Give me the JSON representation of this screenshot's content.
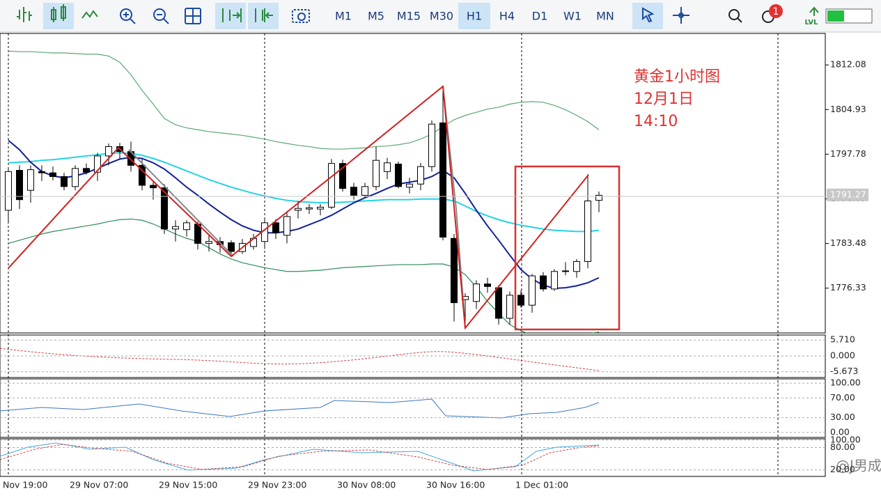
{
  "toolbar": {
    "timeframes": [
      "M1",
      "M5",
      "M15",
      "M30",
      "H1",
      "H4",
      "D1",
      "W1",
      "MN"
    ],
    "badge": "1",
    "level": "LVL"
  },
  "annotation": [
    "黄金1小时图",
    "12月1日",
    "14:10"
  ],
  "watermark": "@J男成",
  "chart_data": {
    "type": "candlestick",
    "categories": [
      "Nov 19:00",
      null,
      null,
      null,
      null,
      null,
      "29 Nov 07:00",
      null,
      null,
      null,
      null,
      null,
      null,
      null,
      "29 Nov 15:00",
      null,
      null,
      null,
      null,
      null,
      null,
      null,
      "29 Nov 23:00",
      null,
      null,
      null,
      null,
      null,
      null,
      null,
      "30 Nov 08:00",
      null,
      null,
      null,
      null,
      null,
      null,
      null,
      "30 Nov 16:00",
      null,
      null,
      null,
      null,
      null,
      null,
      null,
      "1 Dec 01:00",
      null,
      null,
      null,
      null,
      null,
      null,
      null
    ],
    "open": [
      1788.8,
      1795.2,
      1792,
      1795,
      1794.8,
      1794.2,
      1792.6,
      1795.5,
      1794.9,
      1797.5,
      1799,
      1798.2,
      1796,
      1792.8,
      1792.4,
      1785.8,
      1785.7,
      1786.6,
      1783.5,
      1783.8,
      1783.6,
      1782.2,
      1783,
      1783.8,
      1786.8,
      1784.8,
      1788.8,
      1789,
      1789,
      1789.3,
      1796.3,
      1792.5,
      1791.2,
      1792.6,
      1795,
      1796.2,
      1792.5,
      1793,
      1795.8,
      1802.8,
      1784.3,
      1774.5,
      1774.2,
      1777,
      1776.4,
      1771.5,
      1775.2,
      1773.6,
      1778.3,
      1776.2,
      1779,
      1779,
      1780.6,
      1790.4
    ],
    "high": [
      1795.5,
      1796,
      1796,
      1796,
      1795.8,
      1794.8,
      1796,
      1796.3,
      1798,
      1799.5,
      1799.6,
      1799.8,
      1797,
      1793.5,
      1793,
      1787.2,
      1787.2,
      1787,
      1784.8,
      1784.5,
      1784,
      1784.2,
      1785,
      1787.5,
      1787.4,
      1788.5,
      1790.3,
      1789.8,
      1789.8,
      1797,
      1796.9,
      1793.2,
      1793.2,
      1799,
      1797.2,
      1796.6,
      1794,
      1796.4,
      1803.2,
      1808.5,
      1785,
      1775.5,
      1777.6,
      1778,
      1776.8,
      1775.8,
      1776,
      1778.6,
      1778.9,
      1779.4,
      1780.5,
      1781,
      1794.6,
      1791.8
    ],
    "low": [
      1787,
      1789,
      1790,
      1793.5,
      1793.6,
      1792,
      1792,
      1794.5,
      1793.5,
      1796,
      1797,
      1795,
      1792,
      1790.5,
      1785,
      1783.8,
      1784.6,
      1782.5,
      1782.2,
      1782,
      1781.5,
      1781.8,
      1782.5,
      1782.6,
      1784.2,
      1783.5,
      1787.5,
      1788.2,
      1788,
      1789,
      1791.8,
      1790.5,
      1790.8,
      1792,
      1793.8,
      1792.3,
      1791.5,
      1792,
      1795,
      1784,
      1771,
      1771,
      1773,
      1775.6,
      1770.5,
      1770.5,
      1773.2,
      1772.4,
      1775.8,
      1775.9,
      1778.4,
      1778,
      1779.5,
      1788.5
    ],
    "close": [
      1795,
      1790.5,
      1795.3,
      1794.8,
      1794.2,
      1792.6,
      1795.5,
      1794.9,
      1797.5,
      1799,
      1798.2,
      1796,
      1792.8,
      1792.4,
      1785.8,
      1786.2,
      1786.8,
      1783.5,
      1783.8,
      1783.3,
      1782.2,
      1783.5,
      1784.3,
      1786.8,
      1785.2,
      1787.8,
      1789.1,
      1789.2,
      1789.3,
      1796.3,
      1792.3,
      1791.2,
      1792.6,
      1796.8,
      1796.4,
      1792.6,
      1793,
      1795.8,
      1802.6,
      1784.5,
      1774,
      1775,
      1777,
      1776.6,
      1771.5,
      1775.2,
      1773.6,
      1778.3,
      1776.2,
      1779,
      1779.1,
      1780.6,
      1790.3,
      1791.2
    ],
    "series": [
      {
        "color": "#22d3e6",
        "values": [
          1796.4,
          1796.5,
          1796.6,
          1796.8,
          1796.9,
          1797.1,
          1797.3,
          1797.5,
          1797.7,
          1797.9,
          1798,
          1797.9,
          1797.6,
          1797.1,
          1796.5,
          1795.8,
          1795.1,
          1794.4,
          1793.7,
          1793.1,
          1792.5,
          1792,
          1791.5,
          1791.1,
          1790.7,
          1790.4,
          1790.2,
          1790.1,
          1790,
          1790,
          1790.1,
          1790.2,
          1790.3,
          1790.4,
          1790.5,
          1790.5,
          1790.5,
          1790.6,
          1790.6,
          1790.6,
          1790.3,
          1789.5,
          1788.6,
          1787.9,
          1787.3,
          1786.8,
          1786.4,
          1786.1,
          1785.8,
          1785.6,
          1785.5,
          1785.4,
          1785.4,
          1785.6
        ]
      },
      {
        "color": "#10209a",
        "values": [
          1800,
          1798.5,
          1796.5,
          1795,
          1794.3,
          1794,
          1794.3,
          1794.8,
          1795.5,
          1796.3,
          1797,
          1797.3,
          1797.1,
          1796.4,
          1795.4,
          1794,
          1792.5,
          1791.2,
          1789.8,
          1788.5,
          1787.3,
          1786.3,
          1785.6,
          1785.2,
          1785.2,
          1785.4,
          1785.8,
          1786.5,
          1787.2,
          1788,
          1789,
          1790,
          1790.8,
          1791.5,
          1792.3,
          1793,
          1793.3,
          1793.6,
          1794.2,
          1795.2,
          1794,
          1791.5,
          1788.8,
          1786.3,
          1784,
          1781.6,
          1779.3,
          1777.8,
          1776.8,
          1776.3,
          1776.4,
          1776.7,
          1777.2,
          1778
        ]
      },
      {
        "color": "#5aa870",
        "values": [
          1814.3,
          1814.2,
          1814.2,
          1814.1,
          1814,
          1814,
          1813.9,
          1813.8,
          1813.8,
          1813.5,
          1812.5,
          1810.5,
          1808,
          1805.8,
          1803.5,
          1802.5,
          1802,
          1801.7,
          1801.4,
          1801.2,
          1801,
          1800.8,
          1800.5,
          1800.2,
          1799.8,
          1799.5,
          1799.2,
          1799,
          1798.7,
          1798.6,
          1798.6,
          1798.7,
          1798.8,
          1799,
          1799.1,
          1799.3,
          1799.6,
          1800.2,
          1801,
          1802.2,
          1803.3,
          1804,
          1804.5,
          1805,
          1805.3,
          1805.8,
          1806.1,
          1806.2,
          1806.1,
          1805.6,
          1804.9,
          1804,
          1803,
          1801.7
        ]
      },
      {
        "color": "#2e8b57",
        "values": [
          1783.5,
          1784,
          1784.5,
          1785,
          1785.4,
          1785.7,
          1786,
          1786.3,
          1786.6,
          1787,
          1787.3,
          1787.4,
          1787.2,
          1786.6,
          1785.8,
          1785,
          1784.3,
          1783.8,
          1782.8,
          1781.8,
          1781,
          1780.4,
          1780,
          1779.6,
          1779.3,
          1779,
          1779,
          1779.1,
          1779.2,
          1779.4,
          1779.6,
          1779.7,
          1779.8,
          1779.9,
          1780,
          1780.1,
          1780.1,
          1780.1,
          1780.2,
          1780.2,
          1779.7,
          1778.5,
          1776.5,
          1774.2,
          1772.3,
          1770.5,
          1769.5,
          1768.8,
          1768.5,
          1768.4,
          1768.6,
          1768.8,
          1769,
          1769.3
        ]
      }
    ],
    "ylim": [
      1769.16,
      1817.12
    ],
    "yticks": [
      1776.33,
      1783.48,
      1790.63,
      1797.78,
      1804.93,
      1812.08
    ],
    "current_price": 1791.27
  },
  "indicator_panels": [
    {
      "ylim": [
        -7.74,
        7.52
      ],
      "yticks": [
        {
          "value": 5.71,
          "label": "5.710"
        },
        {
          "value": 0,
          "label": "0.000"
        },
        -5.673
      ]
    },
    {
      "ylim": [
        -10.1,
        108.7
      ],
      "yticks": [
        {
          "value": 100,
          "label": "100.00"
        },
        {
          "value": 70,
          "label": "70.00"
        },
        {
          "value": 30,
          "label": "30.00"
        },
        {
          "value": 0,
          "label": "0.00"
        }
      ]
    },
    {
      "ylim": [
        2.6,
        103.3
      ],
      "yticks": [
        {
          "value": 100,
          "label": "100.00"
        },
        {
          "value": 80,
          "label": "80.00"
        },
        {
          "value": 20,
          "label": "20.00"
        }
      ]
    }
  ]
}
